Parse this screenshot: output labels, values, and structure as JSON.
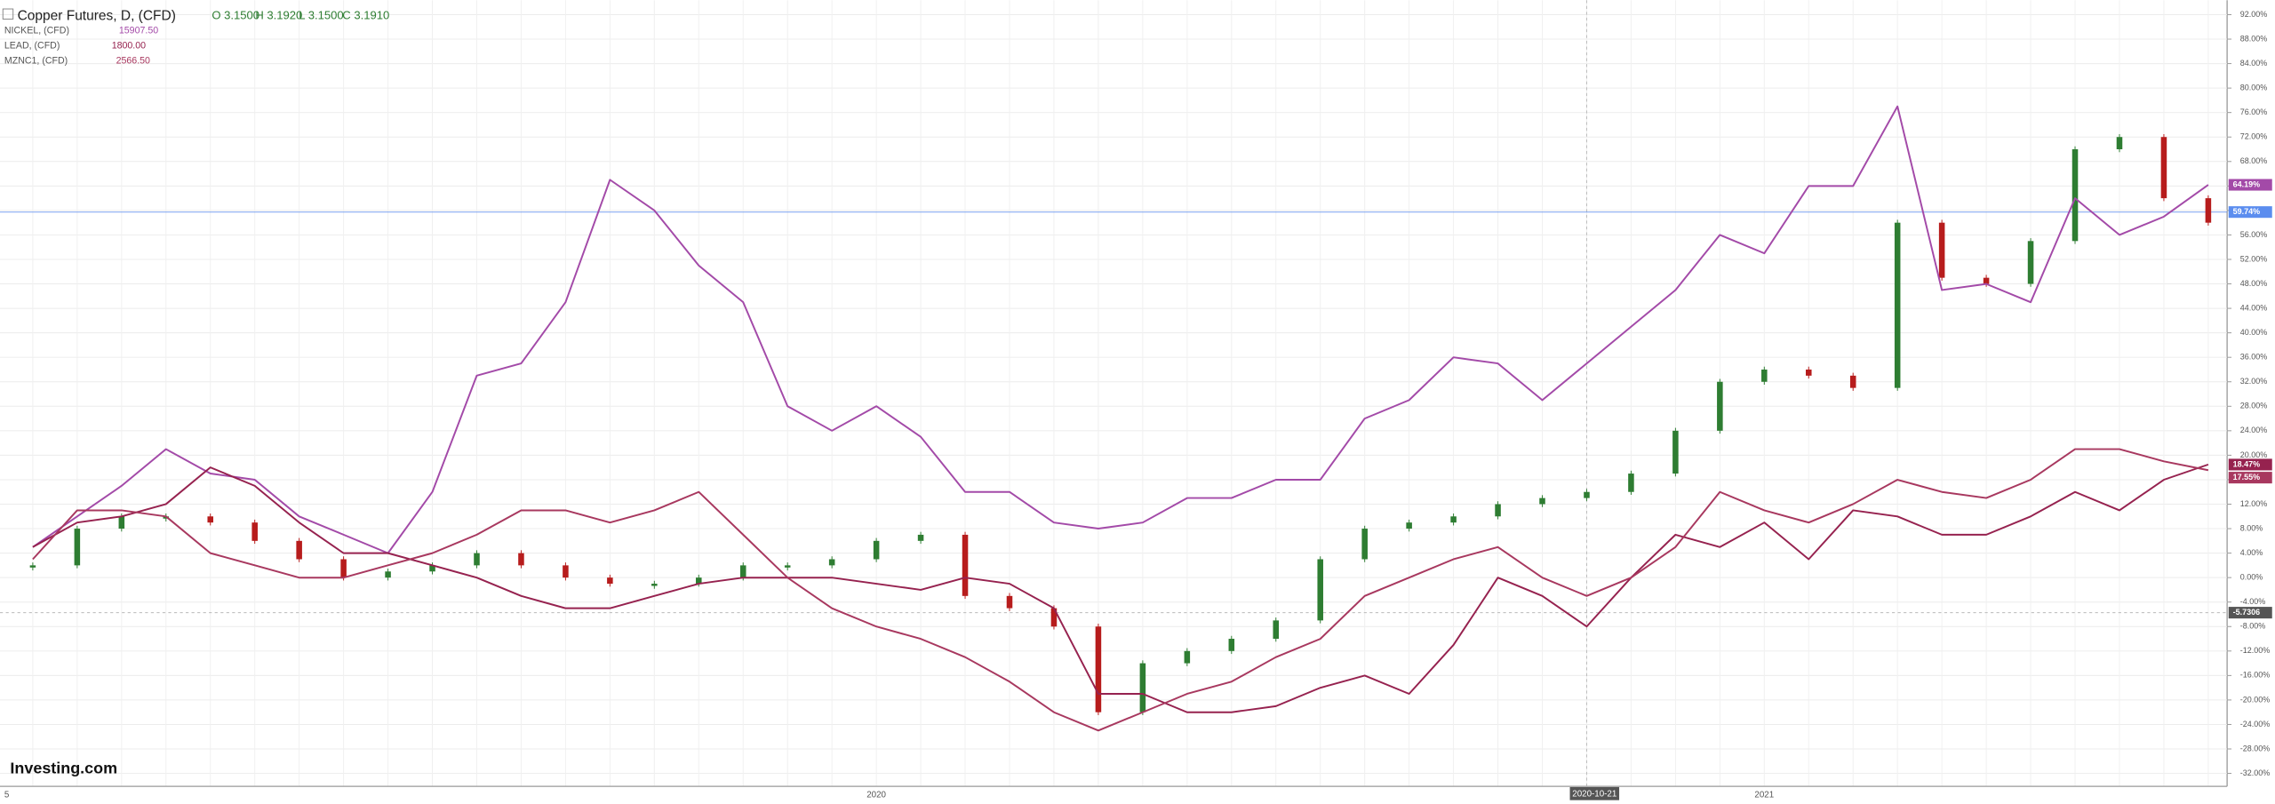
{
  "chart_data": {
    "type": "line",
    "header": {
      "title": "Copper Futures, D, (CFD)",
      "ohlc": [
        "O 3.1500",
        "H 3.1920",
        "L 3.1500",
        "C 3.1910"
      ],
      "comparisons": [
        {
          "name": "NICKEL, (CFD)",
          "price": "15907.50"
        },
        {
          "name": "LEAD, (CFD)",
          "price": "1800.00"
        },
        {
          "name": "MZNC1, (CFD)",
          "price": "2566.50"
        }
      ]
    },
    "brand": "Investing.com",
    "categories": [
      "5",
      null,
      null,
      null,
      null,
      null,
      null,
      null,
      null,
      null,
      null,
      null,
      null,
      null,
      null,
      null,
      null,
      null,
      null,
      "2020",
      null,
      null,
      null,
      null,
      null,
      null,
      null,
      null,
      null,
      null,
      null,
      null,
      null,
      null,
      null,
      "2020-10-21",
      null,
      null,
      null,
      "2021",
      null,
      null,
      null,
      null,
      null,
      null,
      null,
      null,
      null,
      null
    ],
    "series": [
      {
        "name": "Copper Futures",
        "style": "candle",
        "color": "#2e7d32",
        "down_color": "#b71c1c",
        "values": [
          2,
          8,
          10,
          10,
          9,
          6,
          3,
          0,
          1,
          2,
          4,
          2,
          0,
          -1,
          -1,
          0,
          2,
          2,
          3,
          6,
          7,
          -3,
          -5,
          -8,
          -22,
          -14,
          -12,
          -10,
          -7,
          3,
          8,
          9,
          10,
          12,
          13,
          14,
          17,
          24,
          32,
          34,
          33,
          31,
          58,
          49,
          48,
          55,
          70,
          72,
          62,
          58
        ]
      },
      {
        "name": "NICKEL",
        "style": "line",
        "color": "#a34aa8",
        "last_label": "64.19%",
        "values": [
          5,
          10,
          15,
          21,
          17,
          16,
          10,
          7,
          4,
          14,
          33,
          35,
          45,
          65,
          60,
          51,
          45,
          28,
          24,
          28,
          23,
          14,
          14,
          9,
          8,
          9,
          13,
          13,
          16,
          16,
          26,
          29,
          36,
          35,
          29,
          35,
          41,
          47,
          56,
          53,
          64,
          64,
          77,
          47,
          48,
          45,
          62,
          56,
          59,
          64.19
        ]
      },
      {
        "name": "LEAD",
        "style": "line",
        "color": "#96224f",
        "last_label": "18.47%",
        "values": [
          5,
          9,
          10,
          12,
          18,
          15,
          9,
          4,
          4,
          2,
          0,
          -3,
          -5,
          -5,
          -3,
          -1,
          0,
          0,
          0,
          -1,
          -2,
          0,
          -1,
          -5,
          -19,
          -19,
          -22,
          -22,
          -21,
          -18,
          -16,
          -19,
          -11,
          0,
          -3,
          -8,
          0,
          7,
          5,
          9,
          3,
          11,
          10,
          7,
          7,
          10,
          14,
          11,
          16,
          18.47
        ]
      },
      {
        "name": "MZNC1",
        "style": "line",
        "color": "#a8385f",
        "last_label": "17.55%",
        "values": [
          3,
          11,
          11,
          10,
          4,
          2,
          0,
          0,
          2,
          4,
          7,
          11,
          11,
          9,
          11,
          14,
          7,
          0,
          -5,
          -8,
          -10,
          -13,
          -17,
          -22,
          -25,
          -22,
          -19,
          -17,
          -13,
          -10,
          -3,
          0,
          3,
          5,
          0,
          -3,
          0,
          5,
          14,
          11,
          9,
          12,
          16,
          14,
          13,
          16,
          21,
          21,
          19,
          17.55
        ]
      }
    ],
    "price_line": {
      "value": 59.74,
      "label": "59.74%",
      "color": "#5b8def"
    },
    "crosshair": {
      "value": -5.7306,
      "label": "-5.7306",
      "category": 35
    },
    "ylim": [
      -34,
      94
    ],
    "yticks": [
      {
        "value": 92,
        "label": "92.00%"
      },
      {
        "value": 88,
        "label": "88.00%"
      },
      {
        "value": 84,
        "label": "84.00%"
      },
      {
        "value": 80,
        "label": "80.00%"
      },
      {
        "value": 76,
        "label": "76.00%"
      },
      {
        "value": 72,
        "label": "72.00%"
      },
      {
        "value": 68,
        "label": "68.00%"
      },
      {
        "value": 64,
        "label": "64.00%"
      },
      {
        "value": 60,
        "label": "60.00%"
      },
      {
        "value": 56,
        "label": "56.00%"
      },
      {
        "value": 52,
        "label": "52.00%"
      },
      {
        "value": 48,
        "label": "48.00%"
      },
      {
        "value": 44,
        "label": "44.00%"
      },
      {
        "value": 40,
        "label": "40.00%"
      },
      {
        "value": 36,
        "label": "36.00%"
      },
      {
        "value": 32,
        "label": "32.00%"
      },
      {
        "value": 28,
        "label": "28.00%"
      },
      {
        "value": 24,
        "label": "24.00%"
      },
      {
        "value": 20,
        "label": "20.00%"
      },
      {
        "value": 16,
        "label": "16.00%"
      },
      {
        "value": 12,
        "label": "12.00%"
      },
      {
        "value": 8,
        "label": "8.00%"
      },
      {
        "value": 4,
        "label": "4.00%"
      },
      {
        "value": 0,
        "label": "0.00%"
      },
      {
        "value": -4,
        "label": "-4.00%"
      },
      {
        "value": -8,
        "label": "-8.00%"
      },
      {
        "value": -12,
        "label": "-12.00%"
      },
      {
        "value": -16,
        "label": "-16.00%"
      },
      {
        "value": -20,
        "label": "-20.00%"
      },
      {
        "value": -24,
        "label": "-24.00%"
      },
      {
        "value": -28,
        "label": "-28.00%"
      },
      {
        "value": -32,
        "label": "-32.00%"
      }
    ],
    "grid": true
  }
}
